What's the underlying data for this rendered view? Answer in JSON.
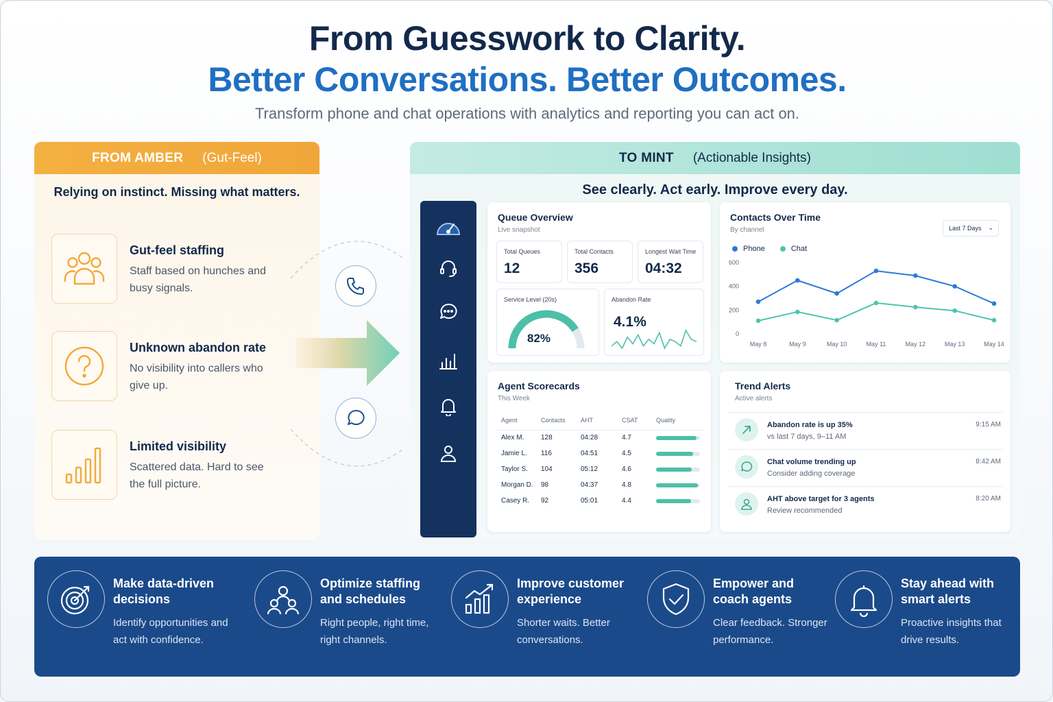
{
  "header": {
    "title_line1": "From Guesswork to Clarity.",
    "title_line2": "Better Conversations. Better Outcomes.",
    "subtitle": "Transform phone and chat operations with analytics and reporting you can act on."
  },
  "left_panel": {
    "label": "FROM AMBER",
    "label_note": "(Gut-Feel)",
    "tagline": "Relying on instinct. Missing what matters.",
    "items": [
      {
        "title": "Gut-feel staffing",
        "desc": "Staff based on hunches and busy signals.",
        "icon": "people-group-icon"
      },
      {
        "title": "Unknown abandon rate",
        "desc": "No visibility into callers who give up.",
        "icon": "question-icon"
      },
      {
        "title": "Limited visibility",
        "desc": "Scattered data. Hard to see the full picture.",
        "icon": "bar-chart-icon"
      }
    ]
  },
  "connector": {
    "icons": [
      "phone-icon",
      "chat-icon"
    ]
  },
  "right_panel": {
    "label": "TO MINT",
    "label_note": "(Actionable Insights)",
    "tagline": "See clearly. Act early. Improve every day.",
    "sidebar_icons": [
      "speedometer-icon",
      "headset-icon",
      "chat-icon",
      "bar-chart-icon",
      "bell-icon",
      "user-icon"
    ],
    "queue": {
      "title": "Queue Overview",
      "subtitle": "Live snapshot",
      "total_queues_label": "Total Queues",
      "total_queues": "12",
      "total_contacts_label": "Total Contacts",
      "total_contacts": "356",
      "longest_wait_label": "Longest Wait Time",
      "longest_wait": "04:32",
      "service_level_label": "Service Level (20s)",
      "service_level": "82%",
      "service_level_fraction": 0.82,
      "abandon_label": "Abandon Rate",
      "abandon": "4.1%"
    },
    "contacts_chart": {
      "title": "Contacts Over Time",
      "subtitle": "By channel",
      "range_select": "Last 7 Days",
      "colors": {
        "phone": "#2d7ad6",
        "chat": "#4fc4ae"
      }
    },
    "scorecards": {
      "title": "Agent Scorecards",
      "subtitle": "This Week",
      "columns": [
        "Agent",
        "Contacts",
        "AHT",
        "CSAT",
        "Quality"
      ],
      "rows": [
        {
          "agent": "Alex M.",
          "contacts": "128",
          "aht": "04:28",
          "csat": "4.7",
          "quality": 0.92
        },
        {
          "agent": "Jamie L.",
          "contacts": "116",
          "aht": "04:51",
          "csat": "4.5",
          "quality": 0.84
        },
        {
          "agent": "Taylor S.",
          "contacts": "104",
          "aht": "05:12",
          "csat": "4.6",
          "quality": 0.82
        },
        {
          "agent": "Morgan D.",
          "contacts": "98",
          "aht": "04:37",
          "csat": "4.8",
          "quality": 0.95
        },
        {
          "agent": "Casey R.",
          "contacts": "92",
          "aht": "05:01",
          "csat": "4.4",
          "quality": 0.8
        }
      ]
    },
    "alerts": {
      "title": "Trend Alerts",
      "subtitle": "Active alerts",
      "items": [
        {
          "title": "Abandon rate is up 35%",
          "desc": "vs last 7 days, 9–11 AM",
          "time": "9:15 AM",
          "icon": "trend-up-icon"
        },
        {
          "title": "Chat volume trending up",
          "desc": "Consider adding coverage",
          "time": "8:42 AM",
          "icon": "chat-icon"
        },
        {
          "title": "AHT above target for 3 agents",
          "desc": "Review recommended",
          "time": "8:20 AM",
          "icon": "user-icon"
        }
      ]
    }
  },
  "chart_data": {
    "type": "line",
    "title": "Contacts Over Time",
    "subtitle": "By channel",
    "categories": [
      "May 8",
      "May 9",
      "May 10",
      "May 11",
      "May 12",
      "May 13",
      "May 14"
    ],
    "series": [
      {
        "name": "Phone",
        "values": [
          270,
          450,
          340,
          530,
          490,
          400,
          255
        ]
      },
      {
        "name": "Chat",
        "values": [
          110,
          185,
          115,
          260,
          225,
          195,
          115
        ]
      }
    ],
    "yticks": [
      0,
      200,
      400,
      600
    ],
    "ylim": [
      0,
      600
    ],
    "legend": "top-left",
    "grid": false
  },
  "sparkline": {
    "values": [
      4,
      6,
      3,
      8,
      5,
      9,
      4,
      7,
      5,
      10,
      3,
      7,
      6,
      4,
      11,
      7,
      6
    ]
  },
  "benefits": [
    {
      "title": "Make data-driven decisions",
      "desc": "Identify opportunities and act with confidence.",
      "icon": "target-icon"
    },
    {
      "title": "Optimize staffing and schedules",
      "desc": "Right people, right time, right channels.",
      "icon": "team-icon"
    },
    {
      "title": "Improve customer experience",
      "desc": "Shorter waits. Better conversations.",
      "icon": "growth-chart-icon"
    },
    {
      "title": "Empower and coach agents",
      "desc": "Clear feedback. Stronger performance.",
      "icon": "shield-check-icon"
    },
    {
      "title": "Stay ahead with smart alerts",
      "desc": "Proactive insights that drive results.",
      "icon": "bell-icon"
    }
  ]
}
